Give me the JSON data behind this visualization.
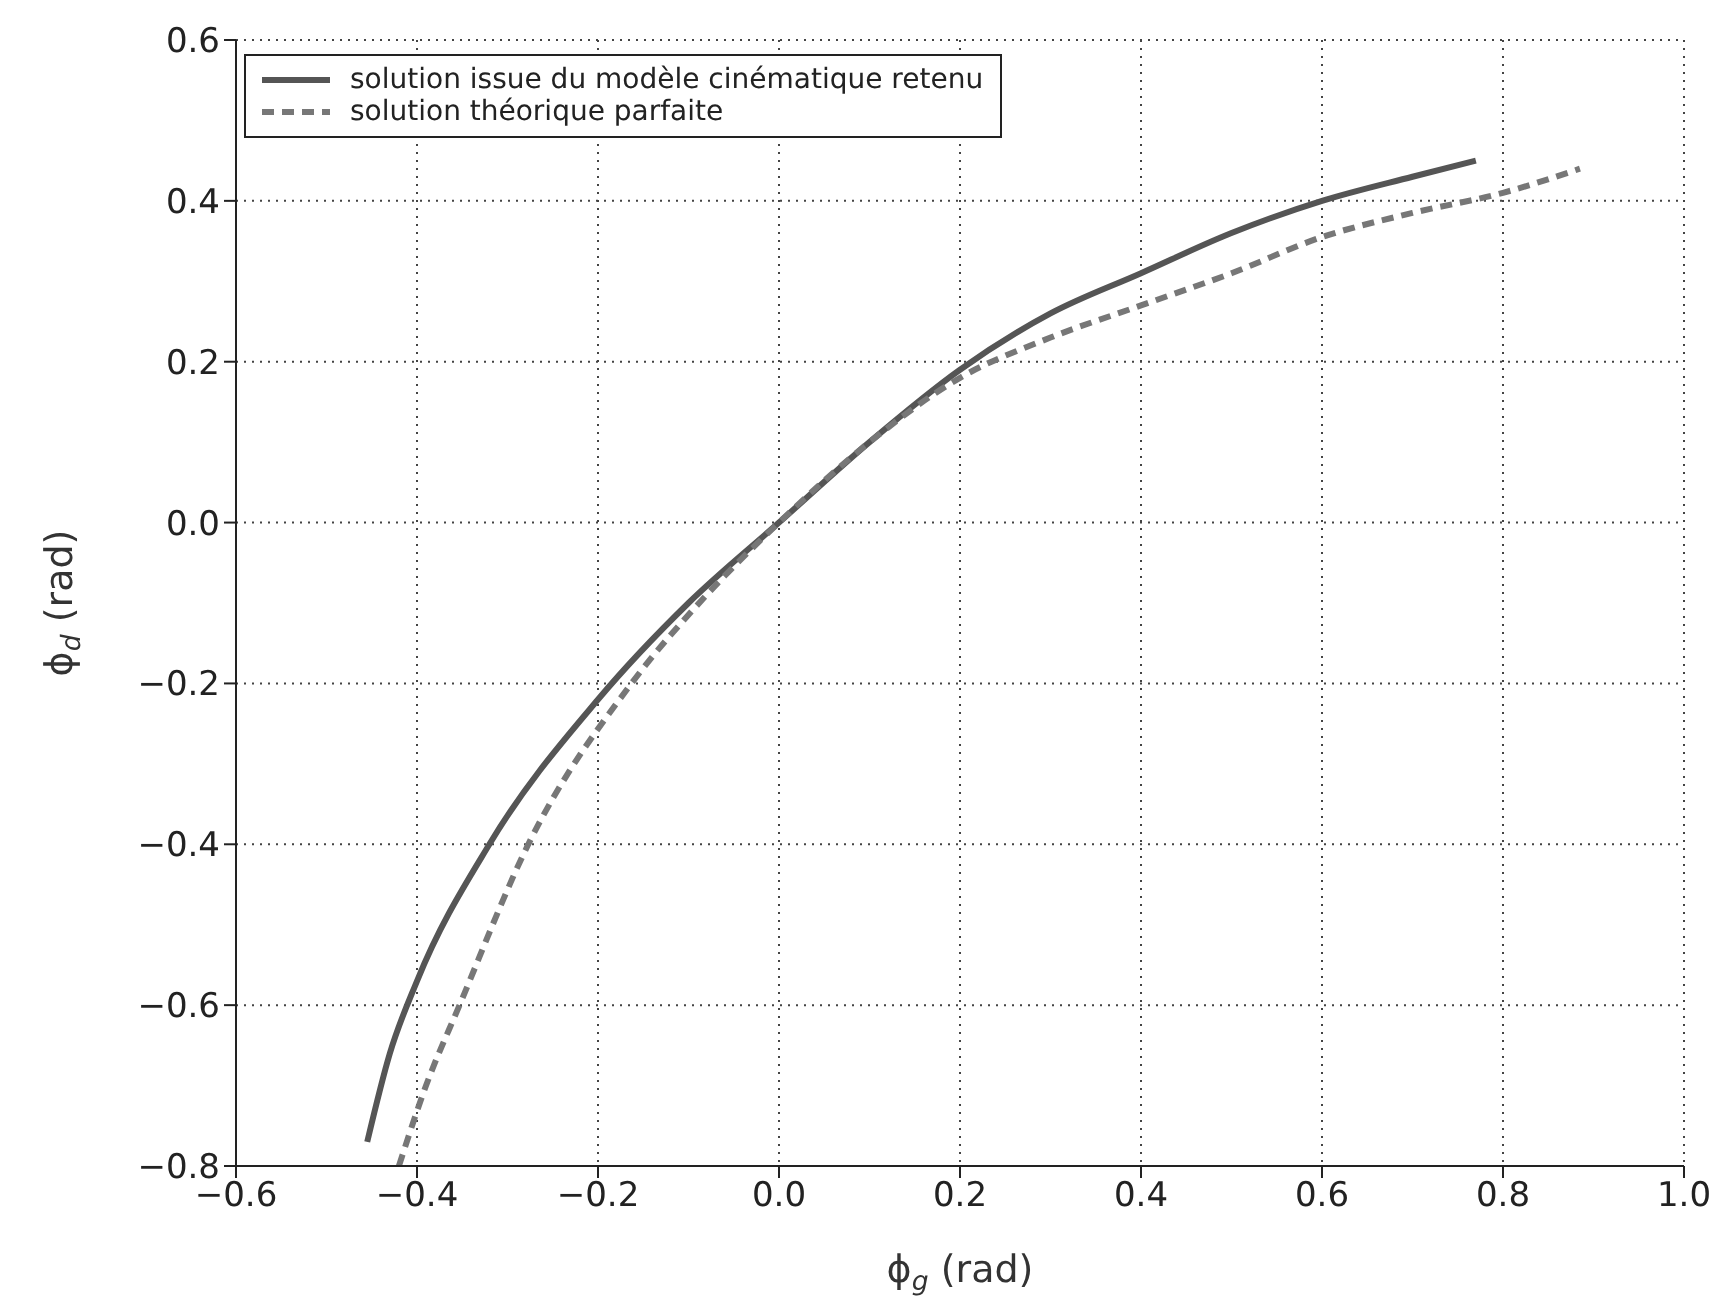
{
  "chart_data": {
    "type": "line",
    "xlabel": "ϕ$_{g}$ (rad)",
    "ylabel": "ϕ$_{d}$ (rad)",
    "xlim": [
      -0.6,
      1.0
    ],
    "xticks": [
      -0.6,
      -0.4,
      -0.2,
      {
        "value": 0,
        "label": "0.0"
      },
      0.2,
      0.4,
      0.6,
      0.8,
      {
        "value": 1,
        "label": "1.0"
      }
    ],
    "ylim": [
      -0.8,
      0.6
    ],
    "yticks": [
      -0.8,
      -0.6,
      -0.4,
      -0.2,
      {
        "value": 0,
        "label": "0.0"
      },
      0.2,
      0.4,
      0.6
    ],
    "grid": true,
    "legend": "top left",
    "series": [
      {
        "name": "solution issue du modèle cinématique retenu",
        "color": "#555555",
        "line_style": "solid",
        "x": [
          -0.455,
          -0.43,
          -0.4,
          -0.32,
          -0.2,
          -0.1,
          0.0,
          0.1,
          0.2,
          0.3,
          0.4,
          0.5,
          0.6,
          0.7,
          0.77
        ],
        "values": [
          -0.77,
          -0.66,
          -0.57,
          -0.4,
          -0.22,
          -0.1,
          0.0,
          0.1,
          0.19,
          0.26,
          0.31,
          0.36,
          0.4,
          0.43,
          0.45
        ]
      },
      {
        "name": "solution théorique parfaite",
        "color": "#777777",
        "line_style": "dashed",
        "x": [
          -0.42,
          -0.39,
          -0.353,
          -0.277,
          -0.163,
          -0.08,
          0.0,
          0.1,
          0.2,
          0.3,
          0.4,
          0.5,
          0.6,
          0.7,
          0.8,
          0.885
        ],
        "values": [
          -0.8,
          -0.7,
          -0.6,
          -0.4,
          -0.2,
          -0.09,
          0.0,
          0.1,
          0.18,
          0.23,
          0.27,
          0.31,
          0.355,
          0.385,
          0.41,
          0.44
        ]
      }
    ]
  }
}
